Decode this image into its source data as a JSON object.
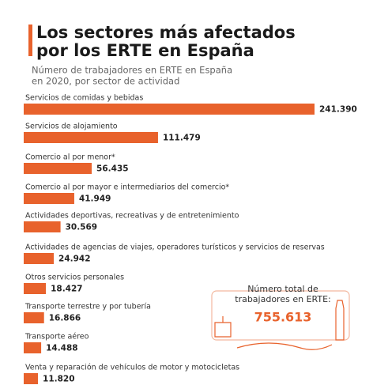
{
  "chart_data": {
    "type": "bar",
    "title": [
      "Los sectores más afectados",
      "por los ERTE en España"
    ],
    "subtitle": [
      "Número de trabajadores en ERTE en España",
      "en 2020, por sector de actividad"
    ],
    "categories": [
      "Servicios de comidas y bebidas",
      "Servicios de alojamiento",
      "Comercio al por menor*",
      "Comercio al por mayor e intermediarios del comercio*",
      "Actividades deportivas, recreativas y de entretenimiento",
      "Actividades de agencias de viajes, operadores turísticos y servicios de reservas",
      "Otros servicios personales",
      "Transporte terrestre y por tubería",
      "Transporte aéreo",
      "Venta y reparación de vehículos de motor y motocicletas"
    ],
    "values": [
      241390,
      111479,
      56435,
      41949,
      30569,
      24942,
      18427,
      16866,
      14488,
      11820
    ],
    "value_labels": [
      "241.390",
      "111.479",
      "56.435",
      "41.949",
      "30.569",
      "24.942",
      "18.427",
      "16.866",
      "14.488",
      "11.820"
    ],
    "color": "#e8622c",
    "total_label": [
      "Número total de",
      "trabajadores en ERTE:"
    ],
    "total_value": 755613,
    "total_value_label": "755.613"
  }
}
